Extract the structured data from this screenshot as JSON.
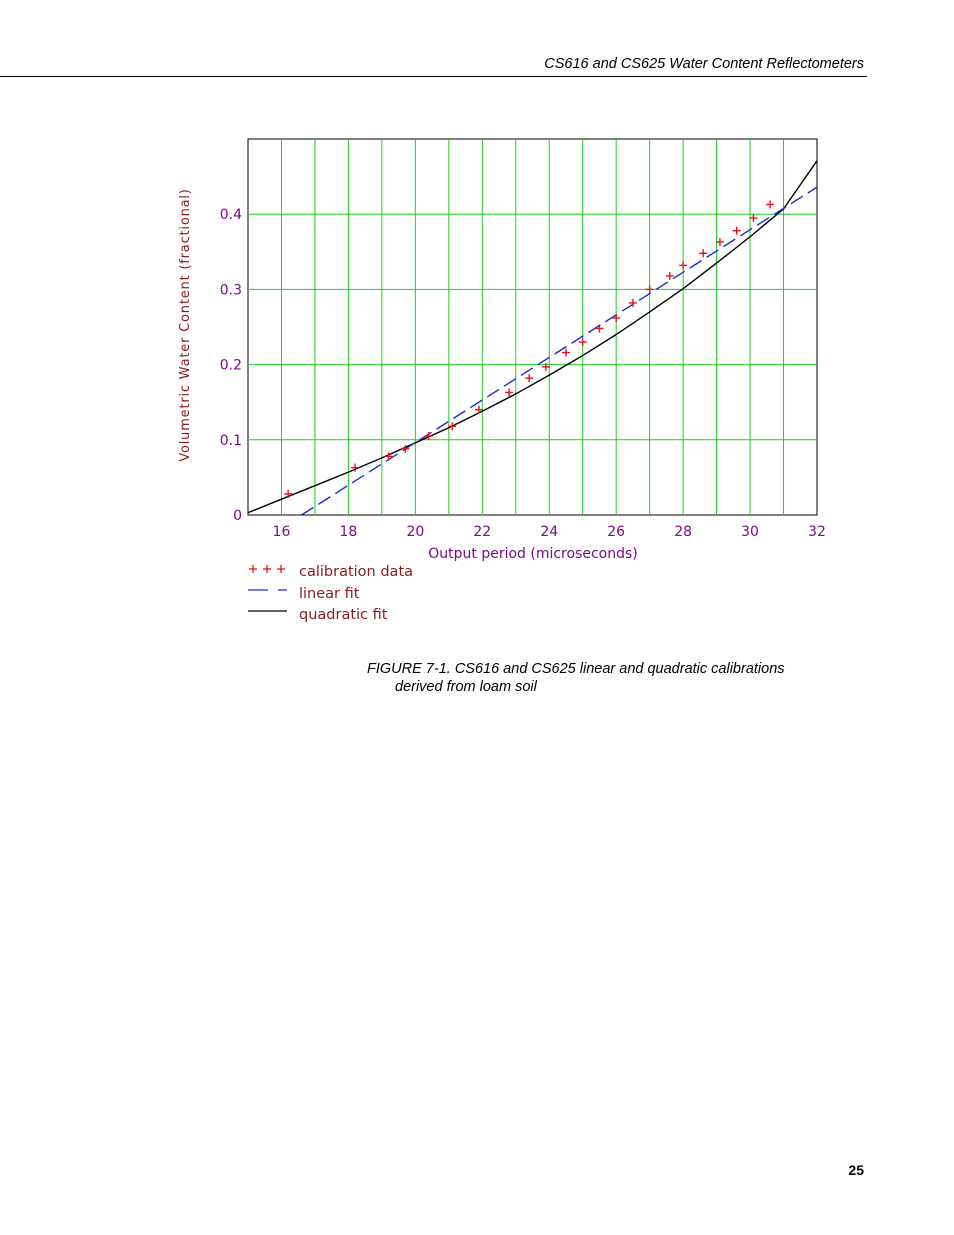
{
  "page": {
    "header": "CS616 and CS625 Water Content Reflectometers",
    "caption_line1": "FIGURE 7-1.  CS616 and CS625 linear and quadratic calibrations",
    "caption_line2": "derived from loam soil",
    "page_number": "25"
  },
  "chart_data": {
    "type": "line",
    "xlabel": "Output period (microseconds)",
    "ylabel": "Volumetric Water Content (fractional)",
    "xlim": [
      15,
      32
    ],
    "ylim": [
      0,
      0.5
    ],
    "x_ticks": [
      16,
      18,
      20,
      22,
      24,
      26,
      28,
      30,
      32
    ],
    "y_ticks": [
      0,
      0.1,
      0.2,
      0.3,
      0.4
    ],
    "y_tick_labels": [
      "0",
      "0.1",
      "0.2",
      "0.3",
      "0.4"
    ],
    "grid": true,
    "legend_position": "below-left",
    "colors": {
      "grid": "#22cc22",
      "tick_label": "#7a0a8a",
      "axis_label": "#8b1a1a",
      "legend_text": "#8b1a1a",
      "calibration": "#e8141a",
      "linear": "#1a2ad8",
      "quadratic": "#000000"
    },
    "series": [
      {
        "name": "calibration data",
        "marker": "plus",
        "x": [
          16.2,
          18.2,
          19.2,
          19.7,
          20.4,
          21.1,
          21.9,
          22.8,
          23.4,
          23.9,
          24.5,
          25.0,
          25.5,
          26.0,
          26.5,
          27.0,
          27.6,
          28.0,
          28.6,
          29.1,
          29.6,
          30.1,
          30.6
        ],
        "y": [
          0.028,
          0.063,
          0.078,
          0.088,
          0.105,
          0.118,
          0.14,
          0.163,
          0.182,
          0.197,
          0.216,
          0.23,
          0.248,
          0.262,
          0.282,
          0.3,
          0.318,
          0.332,
          0.348,
          0.363,
          0.378,
          0.395,
          0.413
        ]
      },
      {
        "name": "linear fit",
        "style": "dashed",
        "x": [
          16.6,
          32.0
        ],
        "y": [
          0.0,
          0.436
        ]
      },
      {
        "name": "quadratic fit",
        "style": "solid",
        "x": [
          15.0,
          16.0,
          17.0,
          18.0,
          19.0,
          20.0,
          21.0,
          22.0,
          23.0,
          24.0,
          25.0,
          26.0,
          27.0,
          28.0,
          29.0,
          30.0,
          31.0,
          32.0
        ],
        "y": [
          0.003,
          0.021,
          0.039,
          0.057,
          0.076,
          0.096,
          0.116,
          0.138,
          0.161,
          0.186,
          0.212,
          0.24,
          0.27,
          0.301,
          0.335,
          0.37,
          0.407,
          0.471
        ]
      }
    ]
  }
}
